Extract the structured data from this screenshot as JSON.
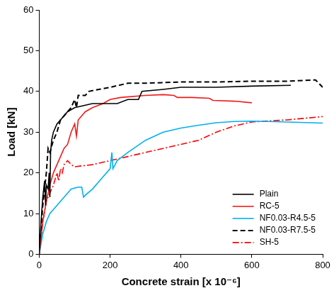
{
  "chart_data": {
    "type": "line",
    "x_label": "Concrete strain [x 10⁻⁶]",
    "y_label": "Load [kN]",
    "xlim": [
      0,
      800
    ],
    "xticks": [
      0,
      200,
      400,
      600,
      800
    ],
    "ylim": [
      0,
      60
    ],
    "yticks": [
      0,
      10,
      20,
      30,
      40,
      50,
      60
    ],
    "grid": false,
    "legend": "lower right",
    "series": [
      {
        "name": "Plain",
        "color": "#000000",
        "line_style": "solid",
        "x": [
          0,
          5,
          10,
          15,
          18,
          20,
          25,
          28,
          30,
          32,
          35,
          40,
          50,
          60,
          80,
          100,
          150,
          200,
          220,
          250,
          280,
          290,
          350,
          400,
          500,
          600,
          710
        ],
        "values": [
          0,
          8,
          14,
          18,
          12,
          17,
          16,
          20,
          14,
          25,
          28,
          30,
          32,
          33,
          35,
          36,
          37,
          37,
          37,
          38,
          38,
          40,
          40.5,
          41,
          41,
          41.3,
          41.5
        ]
      },
      {
        "name": "RC-5",
        "color": "#ee1c1c",
        "line_style": "solid",
        "x": [
          0,
          10,
          20,
          30,
          40,
          50,
          60,
          70,
          80,
          90,
          100,
          105,
          110,
          130,
          150,
          180,
          200,
          230,
          300,
          350,
          380,
          390,
          430,
          480,
          490,
          550,
          600
        ],
        "values": [
          0,
          8,
          13,
          17,
          20,
          22,
          24,
          26,
          27,
          30,
          32,
          29,
          33,
          35,
          36,
          37,
          38,
          38.5,
          39,
          39.2,
          39,
          38.5,
          38.5,
          38.3,
          37.8,
          37.6,
          37.2
        ]
      },
      {
        "name": "NF0.03-R4.5-5",
        "color": "#00b0f0",
        "line_style": "solid",
        "x": [
          0,
          10,
          20,
          30,
          40,
          50,
          60,
          70,
          90,
          110,
          120,
          125,
          130,
          150,
          180,
          200,
          205,
          208,
          220,
          250,
          300,
          350,
          400,
          450,
          500,
          550,
          600,
          650,
          800
        ],
        "values": [
          0,
          5,
          8,
          10,
          11,
          12,
          13,
          14,
          16,
          16.5,
          16.5,
          14,
          14.5,
          16,
          19,
          21,
          25,
          21,
          23,
          25,
          28,
          30,
          31,
          31.7,
          32.3,
          32.6,
          32.7,
          32.6,
          32.2
        ]
      },
      {
        "name": "NF0.03-R7.5-5",
        "color": "#000000",
        "line_style": "dashed",
        "x": [
          0,
          10,
          20,
          25,
          30,
          40,
          50,
          60,
          70,
          80,
          90,
          100,
          105,
          110,
          130,
          140,
          200,
          250,
          300,
          400,
          500,
          600,
          700,
          780,
          800
        ],
        "values": [
          0,
          12,
          20,
          26,
          25,
          28,
          30,
          33,
          34,
          35,
          36,
          38,
          36,
          39,
          39,
          40,
          41,
          42,
          42,
          42.3,
          42.3,
          42.5,
          42.5,
          42.8,
          41
        ]
      },
      {
        "name": "SH-5",
        "color": "#ff0000",
        "line_style": "dashdot",
        "x": [
          0,
          10,
          20,
          30,
          40,
          50,
          55,
          60,
          65,
          70,
          80,
          90,
          100,
          150,
          200,
          250,
          300,
          350,
          400,
          450,
          500,
          550,
          600,
          700,
          800
        ],
        "values": [
          0,
          8,
          13,
          15,
          17,
          20,
          18,
          21,
          20,
          22,
          23,
          22,
          21.5,
          22,
          23,
          24,
          25,
          26,
          27,
          28,
          30,
          31.5,
          32.5,
          33,
          33.8
        ]
      }
    ]
  }
}
